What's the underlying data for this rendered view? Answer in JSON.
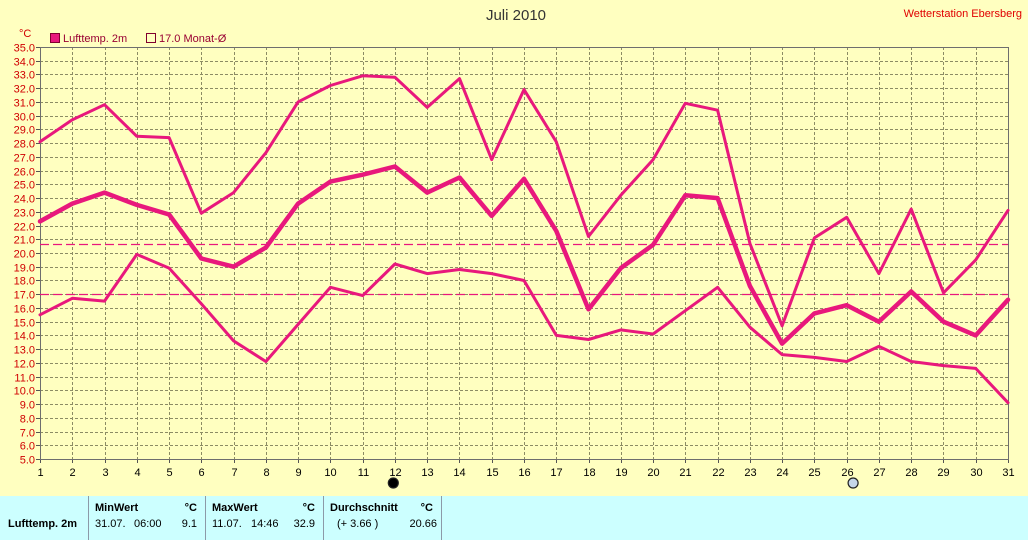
{
  "station": "Wetterstation Ebersberg",
  "chart_data": {
    "type": "line",
    "title": "Juli 2010",
    "ylabel": "°C",
    "ylim": [
      5,
      35
    ],
    "grid": true,
    "legend_position": "top-left",
    "legend": [
      {
        "label": "Lufttemp. 2m",
        "icon": "filled-square-icon"
      },
      {
        "label": "17.0 Monat-Ø",
        "icon": "empty-square-icon"
      }
    ],
    "x": [
      1,
      2,
      3,
      4,
      5,
      6,
      7,
      8,
      9,
      10,
      11,
      12,
      13,
      14,
      15,
      16,
      17,
      18,
      19,
      20,
      21,
      22,
      23,
      24,
      25,
      26,
      27,
      28,
      29,
      30,
      31
    ],
    "yticks": [
      "5.0",
      "6.0",
      "7.0",
      "8.0",
      "9.0",
      "10.0",
      "11.0",
      "12.0",
      "13.0",
      "14.0",
      "15.0",
      "16.0",
      "17.0",
      "18.0",
      "19.0",
      "20.0",
      "21.0",
      "22.0",
      "23.0",
      "24.0",
      "25.0",
      "26.0",
      "27.0",
      "28.0",
      "29.0",
      "30.0",
      "31.0",
      "32.0",
      "33.0",
      "34.0",
      "35.0"
    ],
    "series": [
      {
        "values": [
          28.1,
          29.7,
          30.8,
          28.5,
          28.4,
          22.9,
          24.4,
          27.3,
          31.0,
          32.2,
          32.9,
          32.8,
          30.6,
          32.7,
          26.8,
          31.9,
          28.1,
          21.2,
          24.2,
          26.8,
          30.9,
          30.4,
          20.7,
          14.7,
          21.1,
          22.6,
          18.5,
          23.2,
          17.1,
          19.5,
          23.1
        ]
      },
      {
        "values": [
          22.3,
          23.6,
          24.4,
          23.5,
          22.8,
          19.6,
          19.0,
          20.4,
          23.6,
          25.2,
          25.7,
          26.3,
          24.4,
          25.5,
          22.7,
          25.4,
          21.6,
          15.9,
          18.9,
          20.6,
          24.2,
          24.0,
          17.6,
          13.4,
          15.6,
          16.2,
          15.0,
          17.2,
          15.0,
          14.0,
          16.6
        ]
      },
      {
        "values": [
          15.5,
          16.7,
          16.5,
          19.9,
          18.9,
          16.3,
          13.6,
          12.1,
          14.8,
          17.5,
          16.9,
          19.2,
          18.5,
          18.8,
          18.5,
          18.0,
          14.0,
          13.7,
          14.4,
          14.1,
          15.8,
          17.5,
          14.6,
          12.6,
          12.4,
          12.1,
          13.2,
          12.1,
          11.8,
          11.6,
          9.1
        ]
      }
    ],
    "reference_lines": [
      {
        "value": 20.66
      },
      {
        "value": 17.0
      }
    ],
    "moon_markers": [
      {
        "x": 11.95,
        "icon": "new-moon-icon"
      },
      {
        "x": 26.2,
        "icon": "full-moon-icon"
      }
    ]
  },
  "stats": {
    "row_label": "Lufttemp. 2m",
    "columns": [
      {
        "header": "MinWert",
        "unit": "°C",
        "date": "31.07.",
        "time": "06:00",
        "value": "9.1"
      },
      {
        "header": "MaxWert",
        "unit": "°C",
        "date": "11.07.",
        "time": "14:46",
        "value": "32.9"
      },
      {
        "header": "Durchschnitt",
        "unit": "°C",
        "note": "(+ 3.66 )",
        "value": "20.66"
      }
    ]
  },
  "colors": {
    "series": "#e8187c",
    "reference_line": "#e8187c",
    "station_text": "#e00000",
    "ytick_text": "#d00000",
    "legend_text": "#990033",
    "page_background": "#ffffc0",
    "stats_background": "#ccffff",
    "full_moon": "#c5d6e8"
  }
}
